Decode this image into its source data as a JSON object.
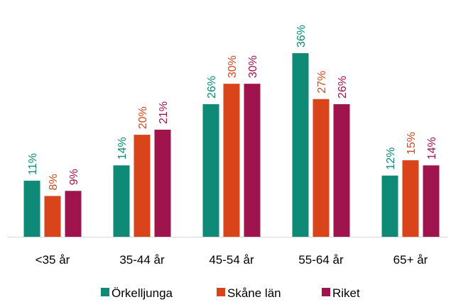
{
  "chart_data": {
    "type": "bar",
    "categories": [
      "<35 år",
      "35-44 år",
      "45-54 år",
      "55-64 år",
      "65+ år"
    ],
    "series": [
      {
        "name": "Örkelljunga",
        "color": "#0e8a77",
        "values": [
          11,
          14,
          26,
          36,
          12
        ],
        "value_labels": [
          "11%",
          "14%",
          "26%",
          "36%",
          "12%"
        ]
      },
      {
        "name": "Skåne län",
        "color": "#d9441a",
        "values": [
          8,
          20,
          30,
          27,
          15
        ],
        "value_labels": [
          "8%",
          "20%",
          "30%",
          "27%",
          "15%"
        ]
      },
      {
        "name": "Riket",
        "color": "#a0144e",
        "values": [
          9,
          21,
          30,
          26,
          14
        ],
        "value_labels": [
          "9%",
          "21%",
          "30%",
          "26%",
          "14%"
        ]
      }
    ],
    "legend": "bottom"
  }
}
